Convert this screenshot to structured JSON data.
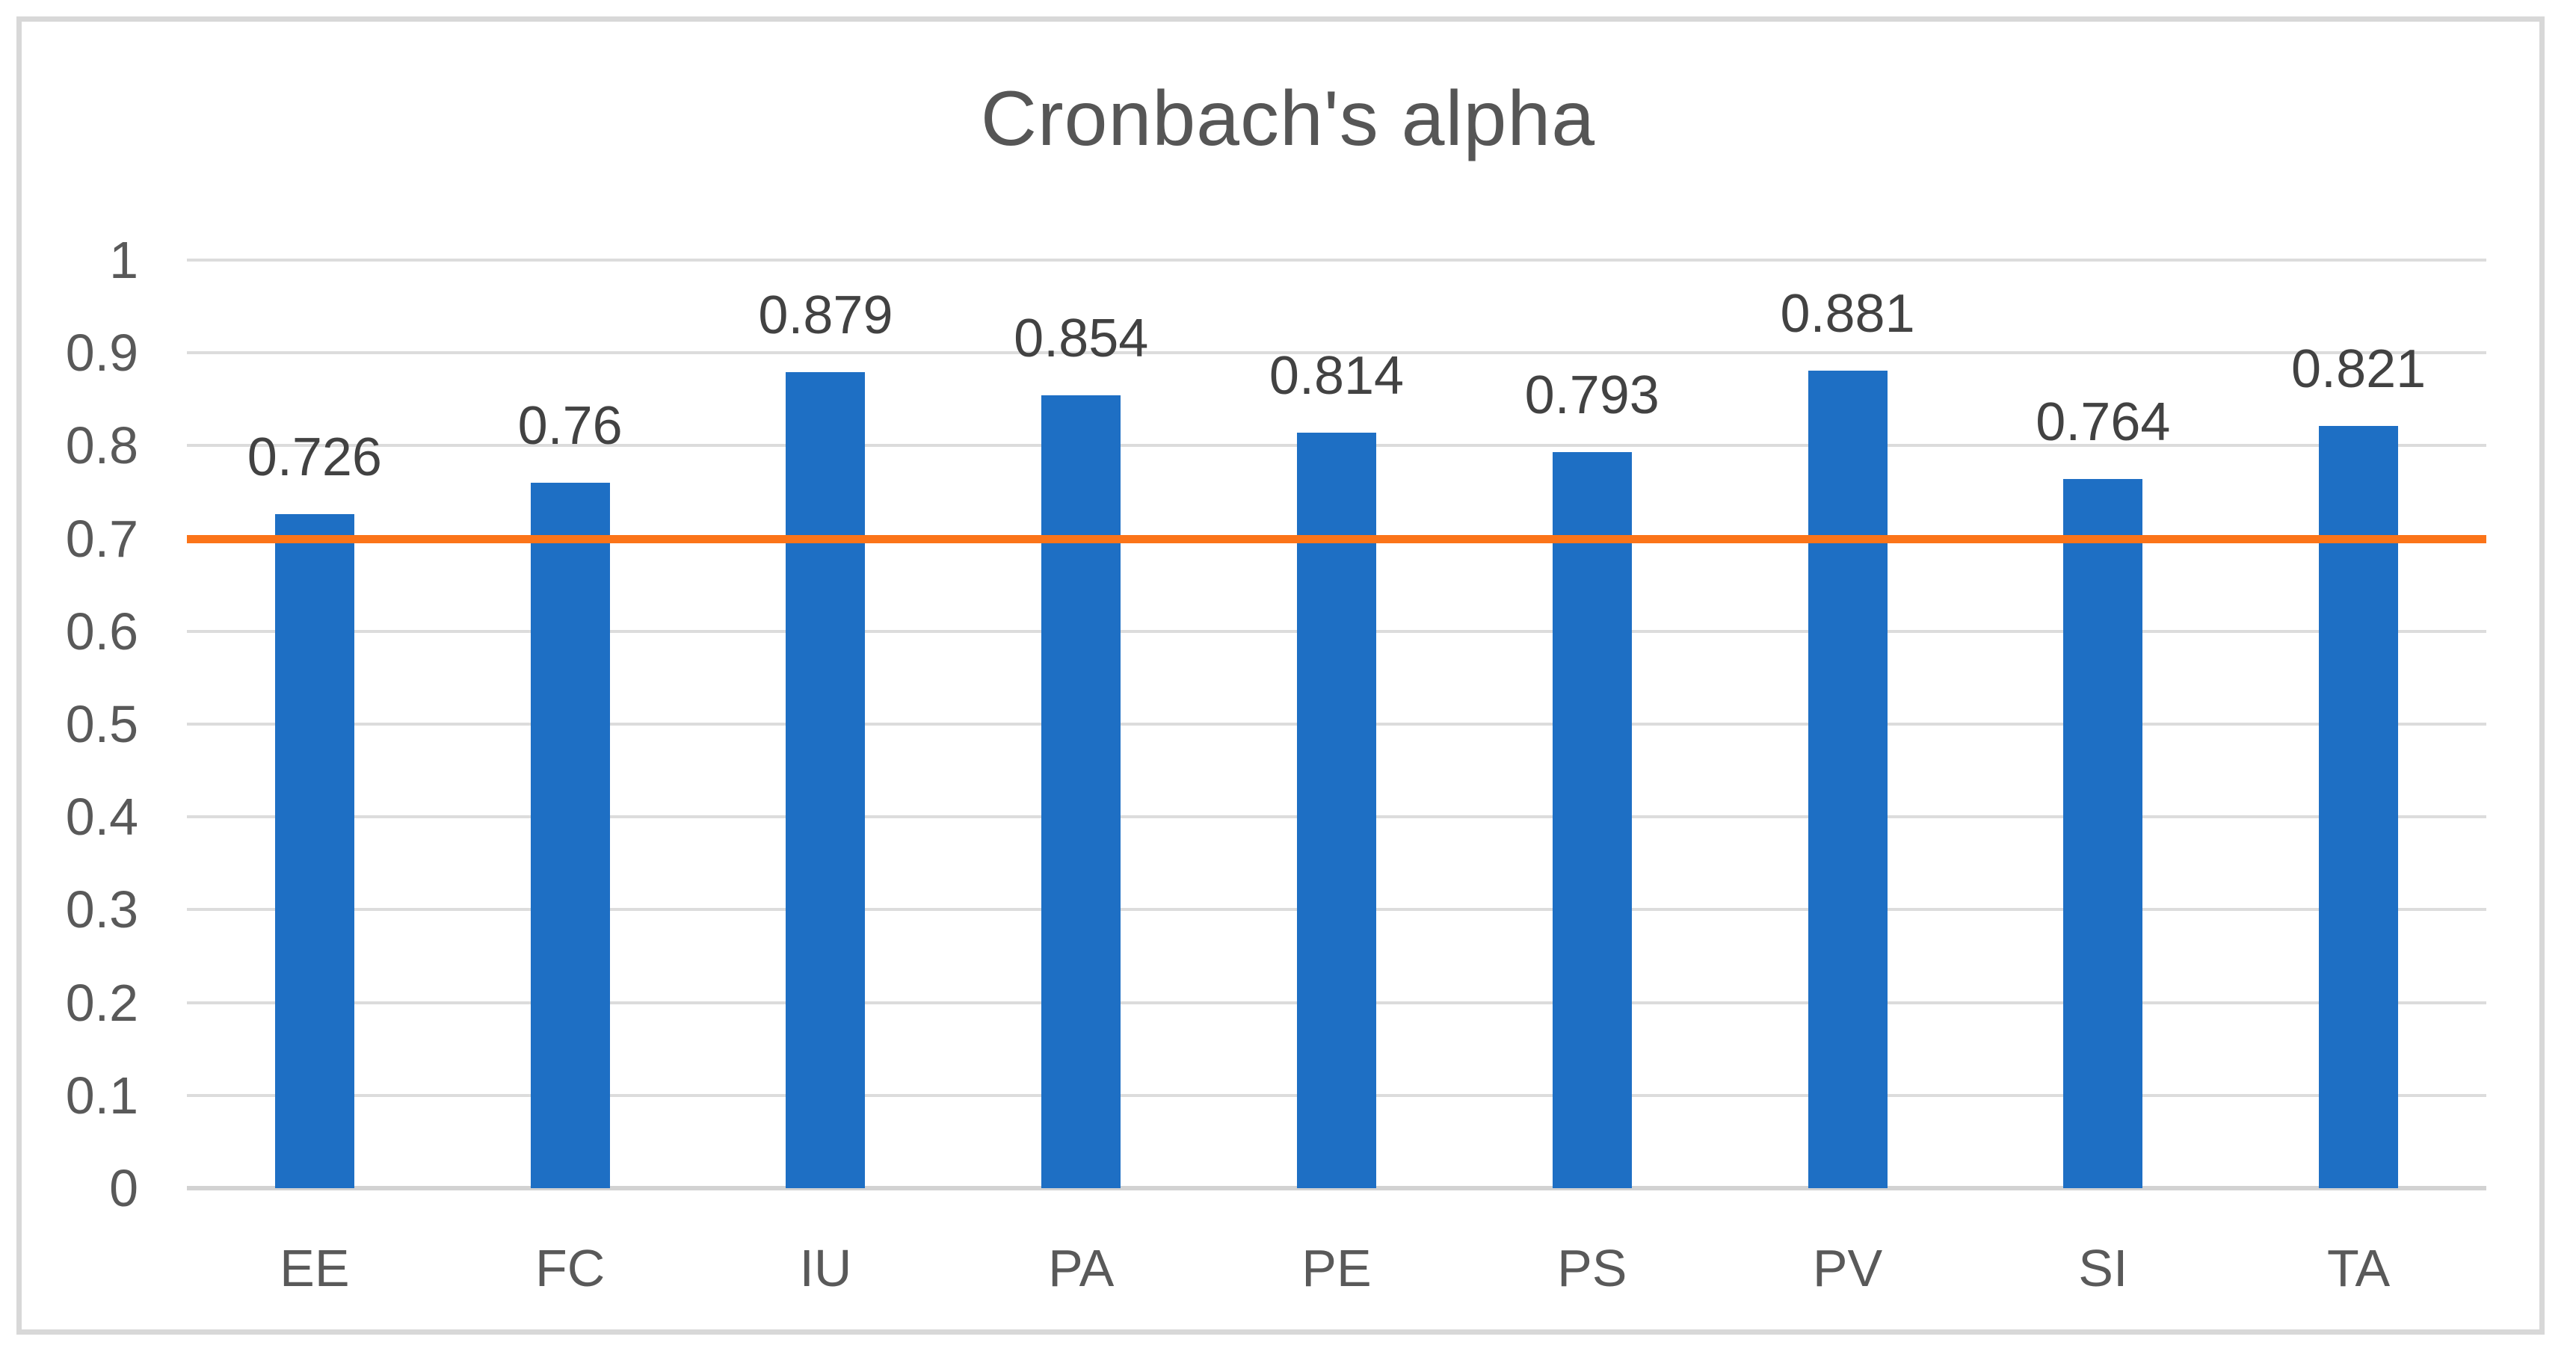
{
  "chart_data": {
    "type": "bar",
    "title": "Cronbach's alpha",
    "categories": [
      "EE",
      "FC",
      "IU",
      "PA",
      "PE",
      "PS",
      "PV",
      "SI",
      "TA"
    ],
    "values": [
      0.726,
      0.76,
      0.879,
      0.854,
      0.814,
      0.793,
      0.881,
      0.764,
      0.821
    ],
    "data_labels": [
      "0.726",
      "0.76",
      "0.879",
      "0.854",
      "0.814",
      "0.793",
      "0.881",
      "0.764",
      "0.821"
    ],
    "series": [
      {
        "name": "Cronbach's alpha",
        "type": "bar",
        "values": [
          0.726,
          0.76,
          0.879,
          0.854,
          0.814,
          0.793,
          0.881,
          0.764,
          0.821
        ]
      },
      {
        "name": "threshold",
        "type": "line",
        "value": 0.7
      }
    ],
    "threshold_line": {
      "value": 0.7,
      "color": "#fb7419"
    },
    "xlabel": "",
    "ylabel": "",
    "ylim": [
      0,
      1
    ],
    "y_ticks": [
      {
        "value": 1,
        "label": "1"
      },
      {
        "value": 0.9,
        "label": "0.9"
      },
      {
        "value": 0.8,
        "label": "0.8"
      },
      {
        "value": 0.7,
        "label": "0.7"
      },
      {
        "value": 0.6,
        "label": "0.6"
      },
      {
        "value": 0.5,
        "label": "0.5"
      },
      {
        "value": 0.4,
        "label": "0.4"
      },
      {
        "value": 0.3,
        "label": "0.3"
      },
      {
        "value": 0.2,
        "label": "0.2"
      },
      {
        "value": 0.1,
        "label": "0.1"
      },
      {
        "value": 0,
        "label": "0"
      }
    ],
    "grid": true,
    "legend": false,
    "colors": {
      "bar": "#1e6fc4",
      "threshold": "#fb7419",
      "gridline": "#dcdcdc",
      "axis_line": "#d2d2d2",
      "title_text": "#565656",
      "tick_text": "#595959",
      "data_label_text": "#424242",
      "frame_border": "#d8d8d8",
      "background": "#ffffff"
    }
  }
}
